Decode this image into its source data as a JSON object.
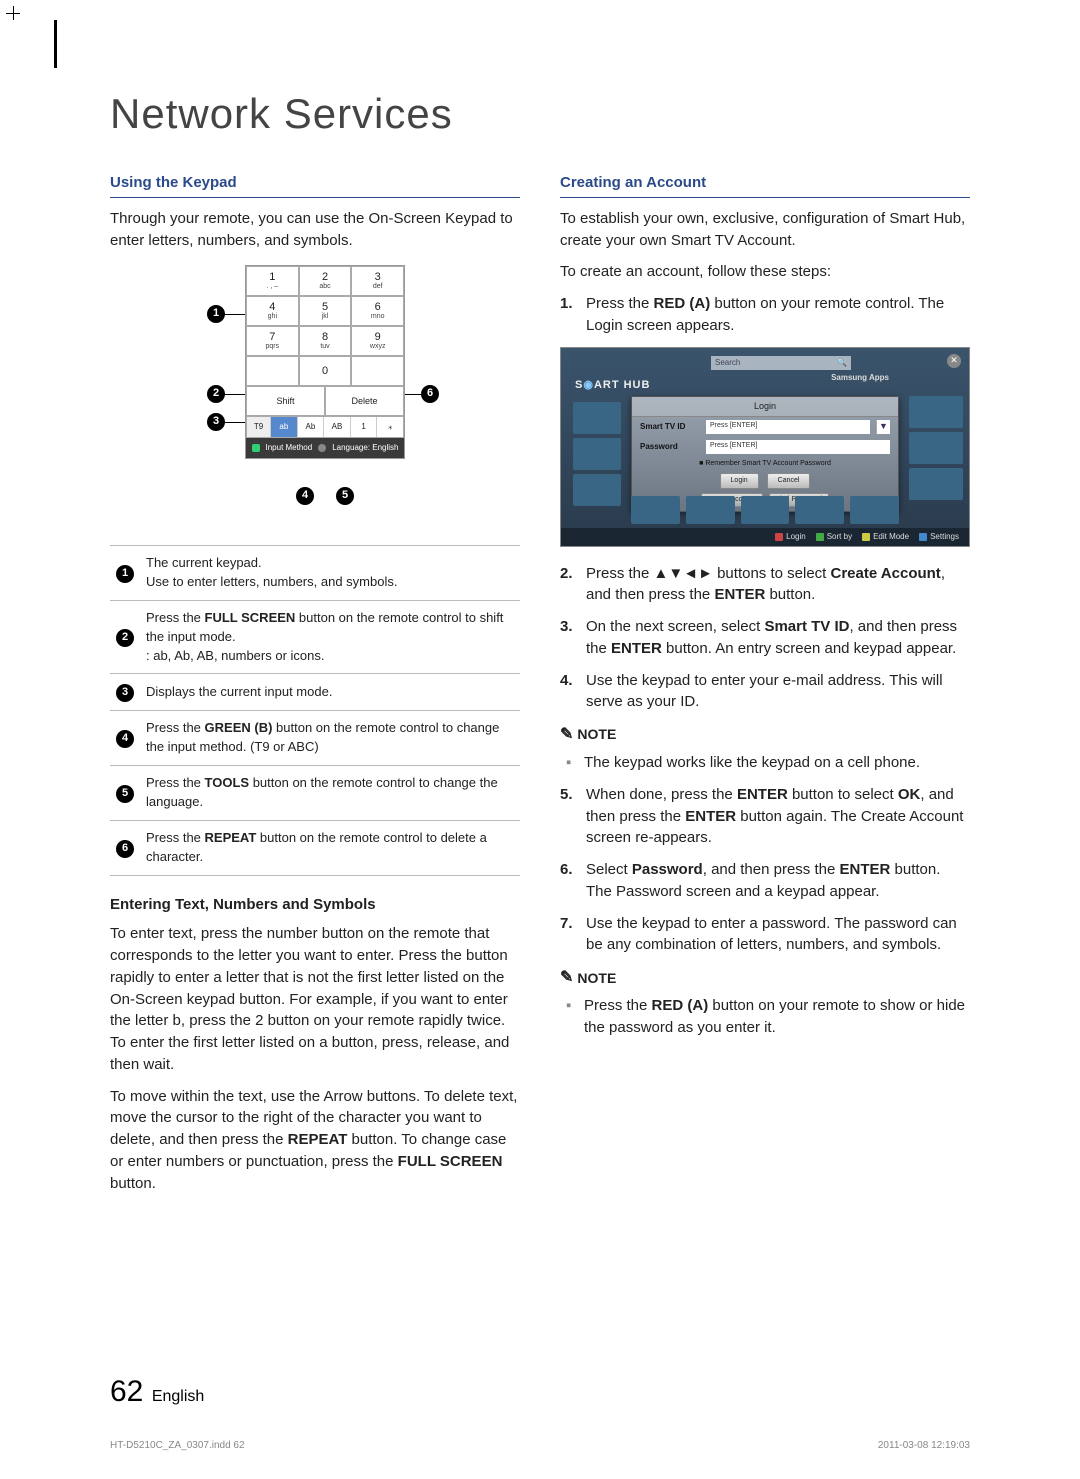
{
  "page": {
    "title": "Network Services",
    "number": "62",
    "language": "English",
    "indd_file": "HT-D5210C_ZA_0307.indd   62",
    "timestamp": "2011-03-08   12:19:03"
  },
  "left": {
    "heading_keypad": "Using the Keypad",
    "intro": "Through your remote, you can use the On-Screen Keypad to enter letters, numbers, and symbols.",
    "keypad": {
      "keys": [
        [
          {
            "n": "1",
            "s": ". , –"
          },
          {
            "n": "2",
            "s": "abc"
          },
          {
            "n": "3",
            "s": "def"
          }
        ],
        [
          {
            "n": "4",
            "s": "ghi"
          },
          {
            "n": "5",
            "s": "jkl"
          },
          {
            "n": "6",
            "s": "mno"
          }
        ],
        [
          {
            "n": "7",
            "s": "pqrs"
          },
          {
            "n": "8",
            "s": "tuv"
          },
          {
            "n": "9",
            "s": "wxyz"
          }
        ],
        [
          {
            "n": "",
            "s": ""
          },
          {
            "n": "0",
            "s": ""
          },
          {
            "n": "",
            "s": ""
          }
        ]
      ],
      "shift": "Shift",
      "delete": "Delete",
      "t9": "T9",
      "modes": [
        "ab",
        "Ab",
        "AB",
        "1",
        "⁎"
      ],
      "status_input": "Input Method",
      "status_lang": "Language: English"
    },
    "legend": [
      {
        "num": "1",
        "html": "The current keypad.<br>Use to enter letters, numbers, and symbols."
      },
      {
        "num": "2",
        "html": "Press the <b>FULL SCREEN</b> button on the remote control to shift the input mode.<br>: ab, Ab, AB, numbers or icons."
      },
      {
        "num": "3",
        "html": "Displays the current input mode."
      },
      {
        "num": "4",
        "html": "Press the <b>GREEN (B)</b> button on the remote control to change the input method. (T9 or ABC)"
      },
      {
        "num": "5",
        "html": "Press the <b>TOOLS</b> button on the remote control to change the language."
      },
      {
        "num": "6",
        "html": "Press the <b>REPEAT</b> button on the remote control to delete a character."
      }
    ],
    "heading_entering": "Entering Text, Numbers and Symbols",
    "para_entering_1": "To enter text, press the number button on the remote that corresponds to the letter you want to enter. Press the button rapidly to enter a letter that is not the first letter listed on the On-Screen keypad button. For example, if you want to enter the letter b, press the 2 button on your remote rapidly twice. To enter the first letter listed on a button, press, release, and then wait.",
    "para_entering_2_pre": "To move within the text, use the Arrow buttons. To delete text, move the cursor to the right of the character you want to delete, and then press the ",
    "repeat_word": "REPEAT",
    "para_entering_2_mid": " button. To change case or enter numbers or punctuation, press the ",
    "full_screen_word": "FULL SCREEN",
    "para_entering_2_post": " button."
  },
  "right": {
    "heading_account": "Creating an Account",
    "intro1": "To establish your own, exclusive, configuration of Smart Hub, create your own Smart TV Account.",
    "intro2": "To create an account, follow these steps:",
    "step1_pre": "Press the ",
    "red_a": "RED (A)",
    "step1_post": " button on your remote control. The Login screen appears.",
    "login_fig": {
      "brand": "S㏜ART HUB",
      "search": "Search",
      "apps": "Samsung Apps",
      "panel_title": "Login",
      "row1_label": "Smart TV ID",
      "row1_field": "Press [ENTER]",
      "row2_label": "Password",
      "row2_field": "Press [ENTER]",
      "remember": "Remember Smart TV Account Password",
      "btn_login": "Login",
      "btn_cancel": "Cancel",
      "link_create": "Create Account",
      "link_find": "Find Password",
      "footer": [
        {
          "c": "#c44",
          "t": "Login"
        },
        {
          "c": "#4a4",
          "t": "Sort by"
        },
        {
          "c": "#cc4",
          "t": "Edit Mode"
        },
        {
          "c": "#48c",
          "t": "Settings"
        }
      ]
    },
    "step2_pre": "Press the ",
    "arrows": "▲▼◄►",
    "step2_mid": " buttons to select ",
    "create_account_b": "Create Account",
    "step2_mid2": ", and then press the ",
    "enter_b": "ENTER",
    "step2_post": " button.",
    "step3_pre": "On the next screen, select ",
    "smart_tv_id_b": "Smart TV ID",
    "step3_mid": ", and then press the ",
    "step3_post": " button. An entry screen and keypad appear.",
    "step4": "Use the keypad to enter your e-mail address. This will serve as your ID.",
    "note_label": "NOTE",
    "note1_item": "The keypad works like the keypad on a cell phone.",
    "step5_pre": "When done, press the ",
    "step5_mid1": " button to select ",
    "ok_b": "OK",
    "step5_mid2": ", and then press the ",
    "step5_post": " button again. The Create Account screen re-appears.",
    "step6_pre": "Select ",
    "password_b": "Password",
    "step6_mid": ", and then press the ",
    "step6_post": " button. The Password screen and a keypad appear.",
    "step7": "Use the keypad to enter a password. The password can be any combination of letters, numbers, and symbols.",
    "note2_pre": "Press the ",
    "note2_post": " button on your remote to show or hide the password as you enter it."
  }
}
